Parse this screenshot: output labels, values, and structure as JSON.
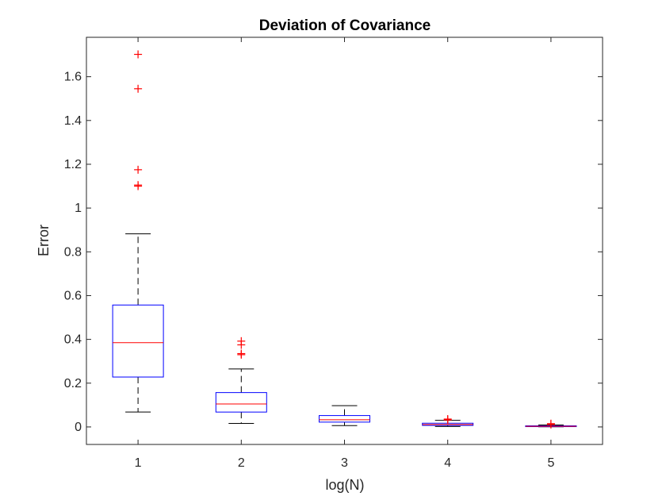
{
  "chart_data": {
    "type": "boxplot",
    "title": "Deviation of Covariance",
    "xlabel": "log(N)",
    "ylabel": "Error",
    "categories": [
      "1",
      "2",
      "3",
      "4",
      "5"
    ],
    "xlim": [
      0.5,
      5.5
    ],
    "ylim": [
      -0.08,
      1.78
    ],
    "yticks": [
      0,
      0.2,
      0.4,
      0.6,
      0.8,
      1,
      1.2,
      1.4,
      1.6
    ],
    "ytick_labels": [
      "0",
      "0.2",
      "0.4",
      "0.6",
      "0.8",
      "1",
      "1.2",
      "1.4",
      "1.6"
    ],
    "grid": false,
    "boxes": [
      {
        "x": 1,
        "whisker_low": 0.068,
        "q1": 0.228,
        "median": 0.385,
        "q3": 0.557,
        "whisker_high": 0.882,
        "outliers": [
          1.1,
          1.105,
          1.175,
          1.545,
          1.702
        ]
      },
      {
        "x": 2,
        "whisker_low": 0.016,
        "q1": 0.068,
        "median": 0.105,
        "q3": 0.157,
        "whisker_high": 0.265,
        "outliers": [
          0.33,
          0.335,
          0.375,
          0.392
        ]
      },
      {
        "x": 3,
        "whisker_low": 0.006,
        "q1": 0.022,
        "median": 0.033,
        "q3": 0.052,
        "whisker_high": 0.097,
        "outliers": []
      },
      {
        "x": 4,
        "whisker_low": 0.002,
        "q1": 0.007,
        "median": 0.011,
        "q3": 0.017,
        "whisker_high": 0.03,
        "outliers": [
          0.032,
          0.036
        ]
      },
      {
        "x": 5,
        "whisker_low": 0.0005,
        "q1": 0.002,
        "median": 0.003,
        "q3": 0.005,
        "whisker_high": 0.009,
        "outliers": [
          0.011,
          0.015
        ]
      }
    ],
    "colors": {
      "box": "#0000ff",
      "median": "#ff0000",
      "whisker": "#000000",
      "outlier": "#ff0000",
      "axis": "#262626"
    }
  }
}
